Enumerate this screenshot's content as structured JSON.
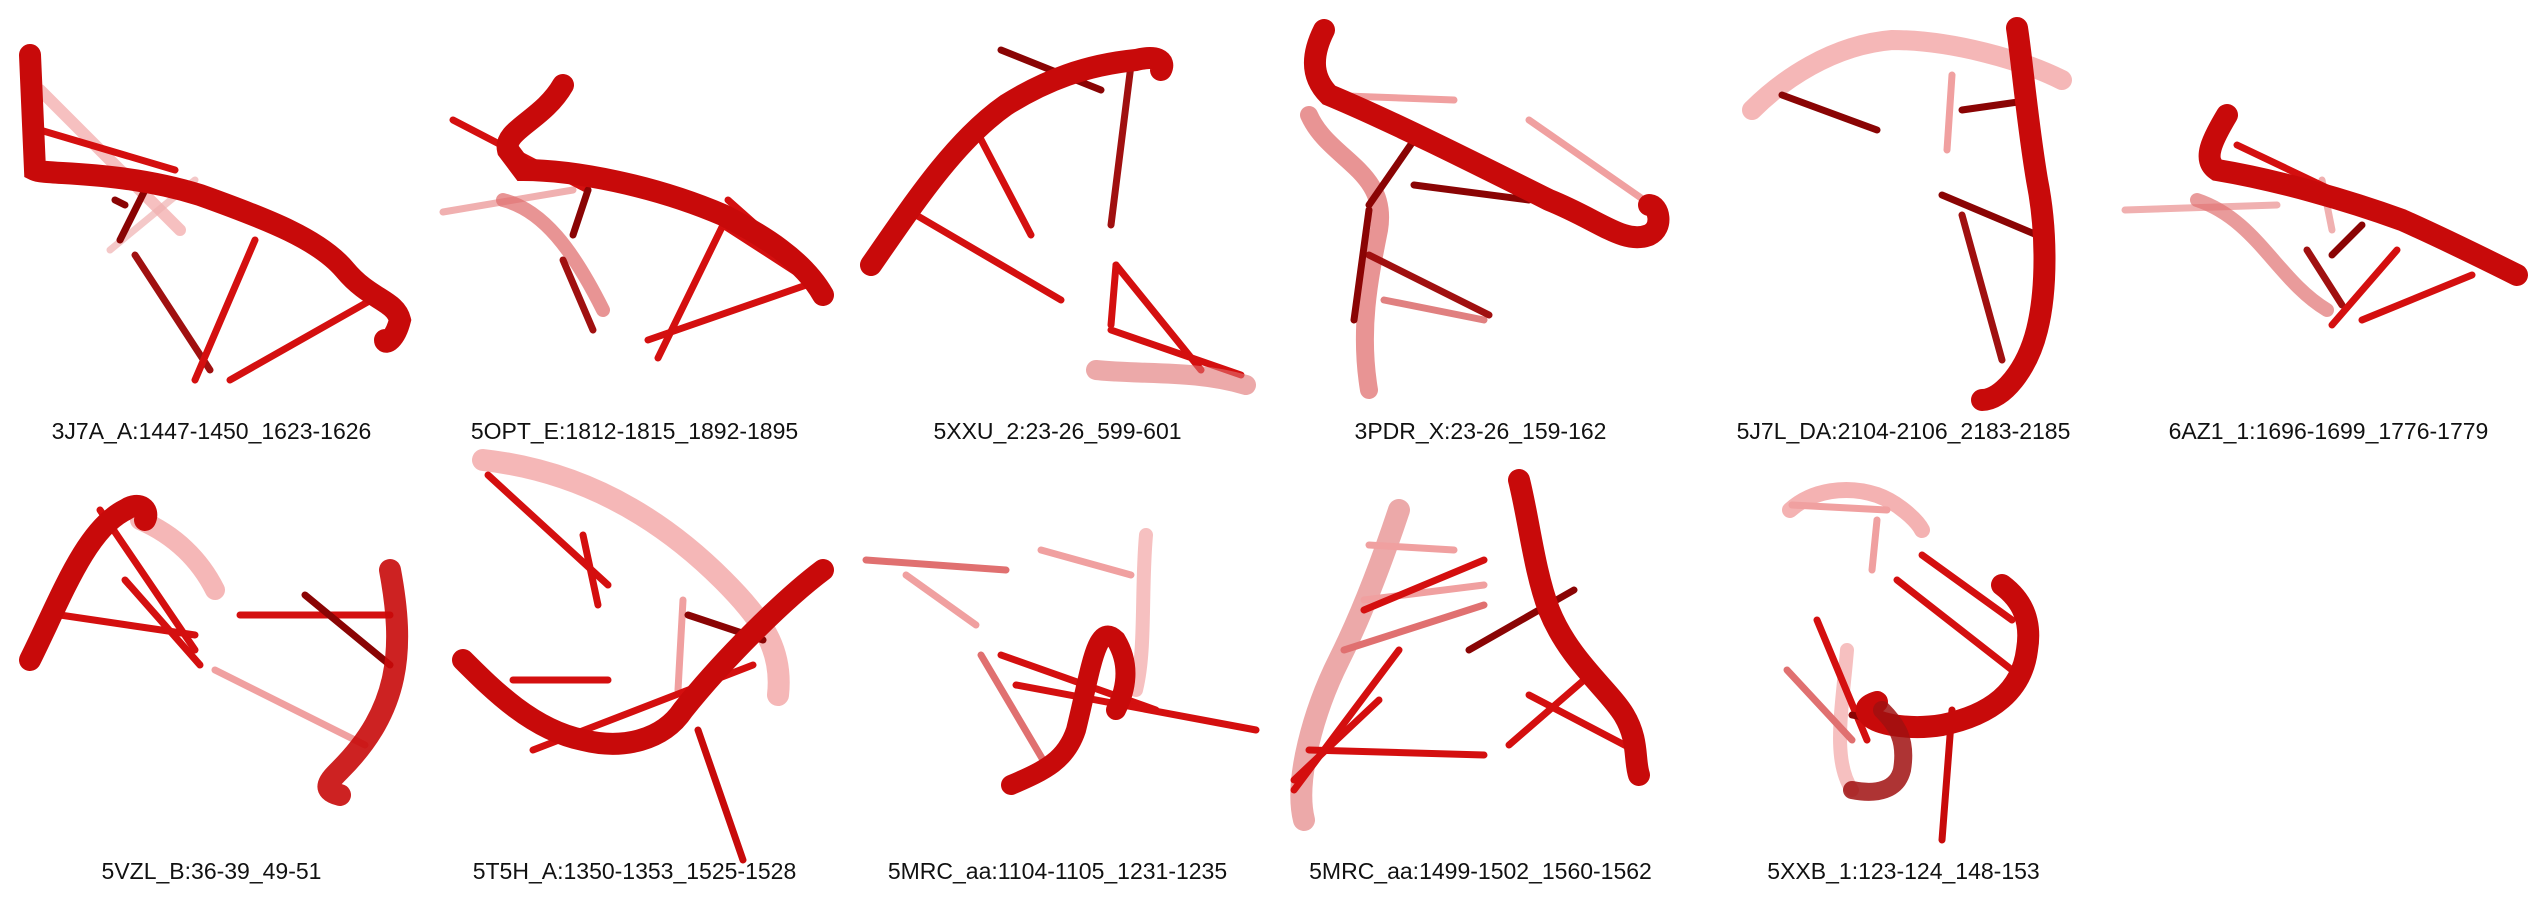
{
  "colors": {
    "backbone": "#d40f0f",
    "backbone_dark": "#8a0404",
    "backbone_light": "#f08a8a"
  },
  "panels": [
    {
      "label": "3J7A_A:1447-1450_1623-1626"
    },
    {
      "label": "5OPT_E:1812-1815_1892-1895"
    },
    {
      "label": "5XXU_2:23-26_599-601"
    },
    {
      "label": "3PDR_X:23-26_159-162"
    },
    {
      "label": "5J7L_DA:2104-2106_2183-2185"
    },
    {
      "label": "6AZ1_1:1696-1699_1776-1779"
    },
    {
      "label": "5VZL_B:36-39_49-51"
    },
    {
      "label": "5T5H_A:1350-1353_1525-1528"
    },
    {
      "label": "5MRC_aa:1104-1105_1231-1235"
    },
    {
      "label": "5MRC_aa:1499-1502_1560-1562"
    },
    {
      "label": "5XXB_1:123-124_148-153"
    }
  ]
}
